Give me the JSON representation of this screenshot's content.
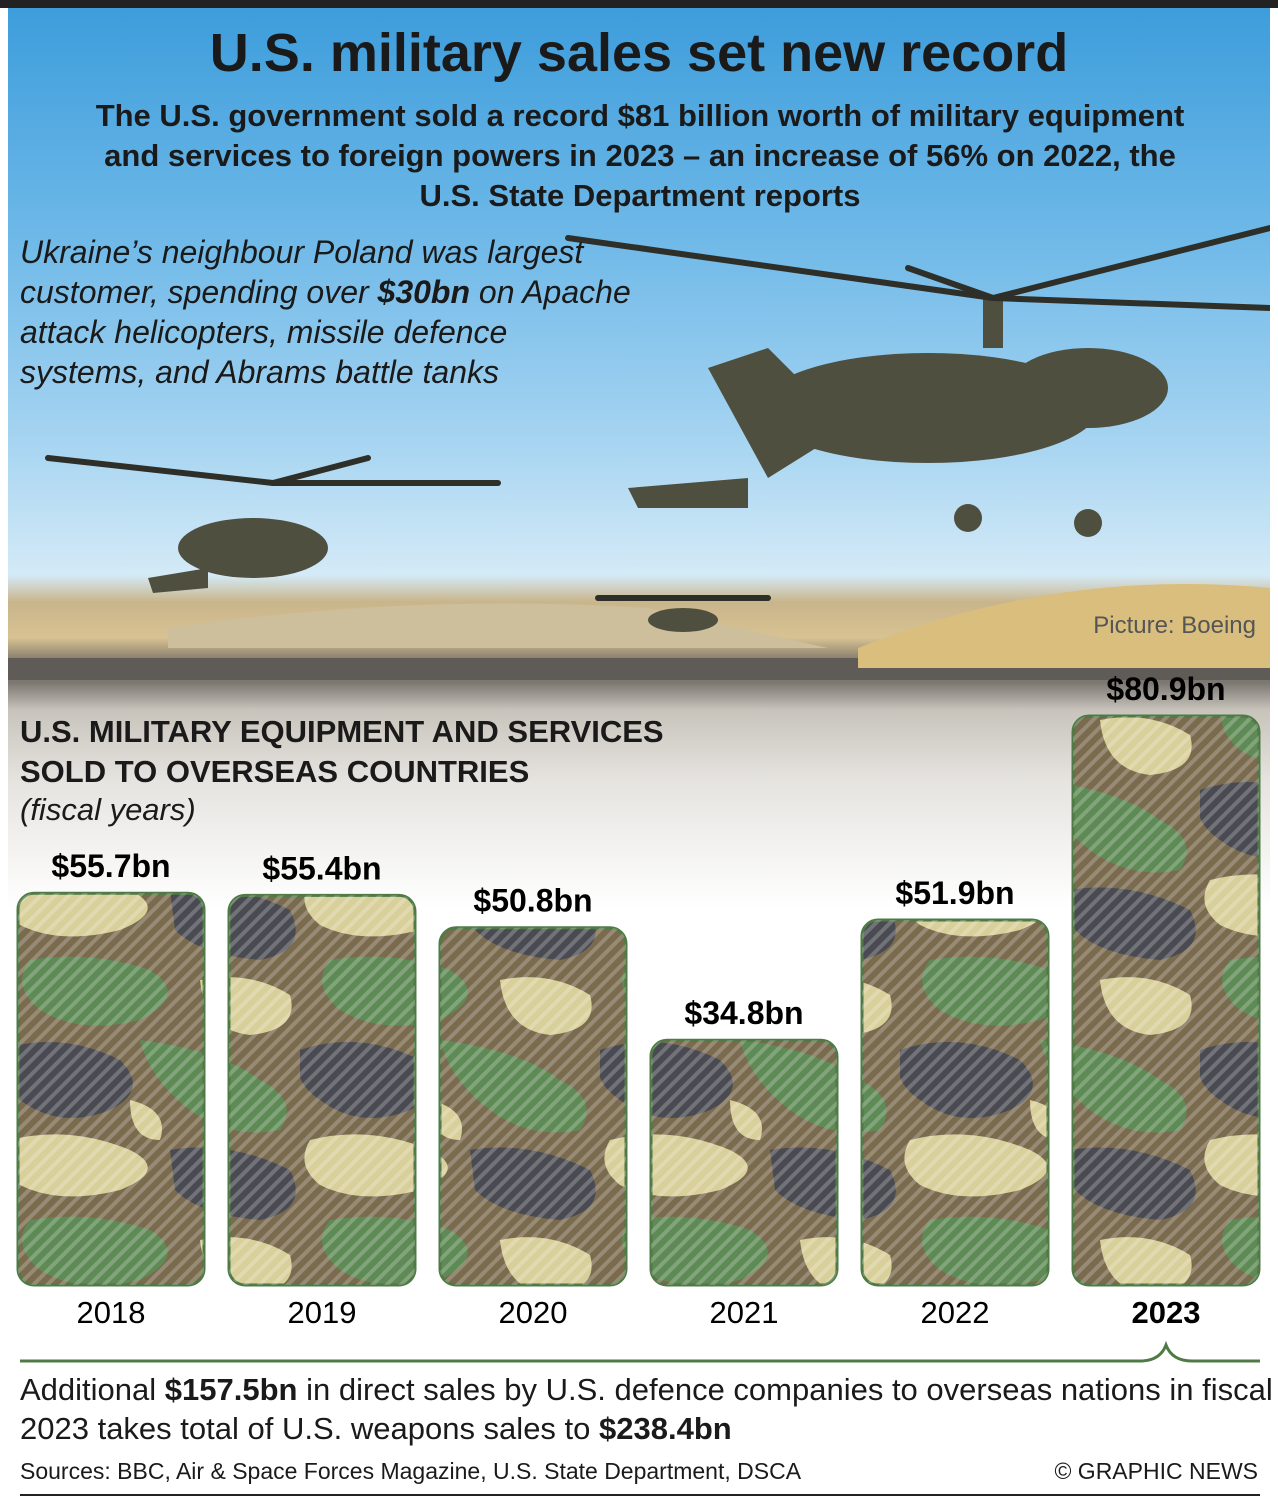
{
  "header": {
    "title": "U.S. military sales set new record",
    "subtitle": "The U.S. government sold a record $81 billion worth of military equipment and services to foreign powers in 2023 – an increase of 56% on 2022, the U.S. State Department reports"
  },
  "intro": {
    "before": "Ukraine’s neighbour Poland was largest customer, spending over ",
    "bold": "$30bn",
    "after": " on Apache attack helicopters, missile defence systems, and Abrams battle tanks"
  },
  "photo_credit": "Picture: Boeing",
  "chart_data": {
    "type": "bar",
    "title": "U.S. MILITARY EQUIPMENT AND SERVICES SOLD TO OVERSEAS COUNTRIES",
    "title_line1": "U.S. MILITARY EQUIPMENT AND SERVICES",
    "title_line2": "SOLD TO OVERSEAS COUNTRIES",
    "subtitle": "(fiscal years)",
    "categories": [
      "2018",
      "2019",
      "2020",
      "2021",
      "2022",
      "2023"
    ],
    "values": [
      55.7,
      55.4,
      50.8,
      34.8,
      51.9,
      80.9
    ],
    "labels": [
      "$55.7bn",
      "$55.4bn",
      "$50.8bn",
      "$34.8bn",
      "$51.9bn",
      "$80.9bn"
    ],
    "unit": "$bn",
    "highlight": "2023",
    "ylim": [
      0,
      80.9
    ]
  },
  "footnote": {
    "p1": "Additional ",
    "b1": "$157.5bn",
    "p2": " in direct sales by U.S. defence companies to overseas nations in fiscal 2023 takes total of U.S. weapons sales to ",
    "b2": "$238.4bn"
  },
  "footer": {
    "sources": "Sources: BBC, Air & Space Forces Magazine, U.S. State Department, DSCA",
    "copyright": "© GRAPHIC NEWS"
  },
  "colors": {
    "camo_sand": "#d8cf9a",
    "camo_green": "#5e8a55",
    "camo_brown": "#7a6a4e",
    "camo_dark": "#4a4b52",
    "bar_border": "#4f7a45",
    "brace": "#4f7a45"
  }
}
